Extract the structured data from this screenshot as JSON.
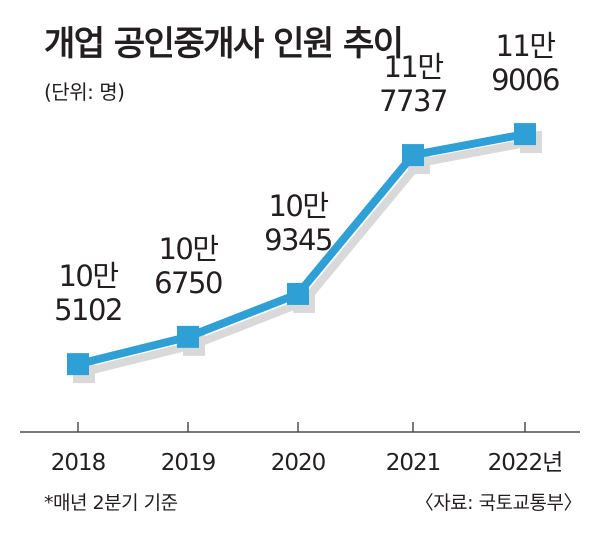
{
  "title": "개업 공인중개사 인원 추이",
  "unit_note": "(단위: 명)",
  "footnote": "*매년 2분기 기준",
  "source": "〈자료: 국토교통부〉",
  "colors": {
    "line": "#2ea0d6",
    "marker": "#2ea0d6",
    "shadow": "#d9d9d9",
    "axis": "#4d4d4d"
  },
  "chart_data": {
    "type": "line",
    "title": "개업 공인중개사 인원 추이",
    "ylabel": "",
    "xlabel": "",
    "categories": [
      "2018",
      "2019",
      "2020",
      "2021",
      "2022년"
    ],
    "values": [
      105102,
      106750,
      109345,
      117737,
      119006
    ],
    "data_labels": [
      [
        "10만",
        "5102"
      ],
      [
        "10만",
        "6750"
      ],
      [
        "10만",
        "9345"
      ],
      [
        "11만",
        "7737"
      ],
      [
        "11만",
        "9006"
      ]
    ],
    "ylim": [
      101000,
      123000
    ],
    "grid": false,
    "legend": "none"
  }
}
